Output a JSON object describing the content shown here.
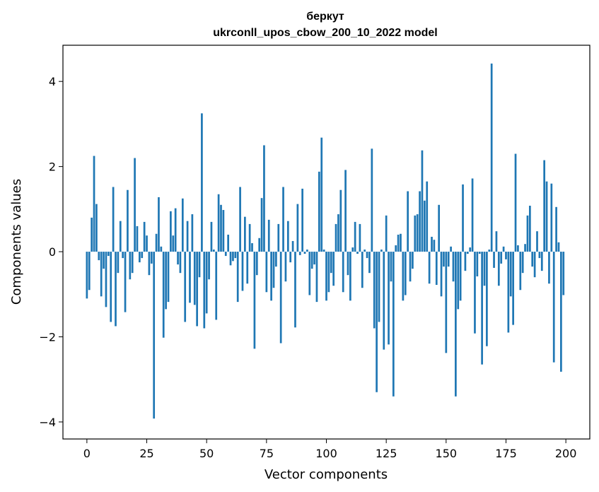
{
  "chart_data": {
    "type": "bar",
    "title": "беркут",
    "subtitle": "ukrconll_upos_cbow_200_10_2022 model",
    "xlabel": "Vector components",
    "ylabel": "Components values",
    "xlim": [
      -10,
      210
    ],
    "ylim": [
      -4.4,
      4.85
    ],
    "xticks": [
      0,
      25,
      50,
      75,
      100,
      125,
      150,
      175,
      200
    ],
    "yticks": [
      -4,
      -2,
      0,
      2,
      4
    ],
    "ytick_labels": [
      "−4",
      "−2",
      "0",
      "2",
      "4"
    ],
    "grid": false,
    "bar_color": "#1f77b4",
    "x": [
      0,
      1,
      2,
      3,
      4,
      5,
      6,
      7,
      8,
      9,
      10,
      11,
      12,
      13,
      14,
      15,
      16,
      17,
      18,
      19,
      20,
      21,
      22,
      23,
      24,
      25,
      26,
      27,
      28,
      29,
      30,
      31,
      32,
      33,
      34,
      35,
      36,
      37,
      38,
      39,
      40,
      41,
      42,
      43,
      44,
      45,
      46,
      47,
      48,
      49,
      50,
      51,
      52,
      53,
      54,
      55,
      56,
      57,
      58,
      59,
      60,
      61,
      62,
      63,
      64,
      65,
      66,
      67,
      68,
      69,
      70,
      71,
      72,
      73,
      74,
      75,
      76,
      77,
      78,
      79,
      80,
      81,
      82,
      83,
      84,
      85,
      86,
      87,
      88,
      89,
      90,
      91,
      92,
      93,
      94,
      95,
      96,
      97,
      98,
      99,
      100,
      101,
      102,
      103,
      104,
      105,
      106,
      107,
      108,
      109,
      110,
      111,
      112,
      113,
      114,
      115,
      116,
      117,
      118,
      119,
      120,
      121,
      122,
      123,
      124,
      125,
      126,
      127,
      128,
      129,
      130,
      131,
      132,
      133,
      134,
      135,
      136,
      137,
      138,
      139,
      140,
      141,
      142,
      143,
      144,
      145,
      146,
      147,
      148,
      149,
      150,
      151,
      152,
      153,
      154,
      155,
      156,
      157,
      158,
      159,
      160,
      161,
      162,
      163,
      164,
      165,
      166,
      167,
      168,
      169,
      170,
      171,
      172,
      173,
      174,
      175,
      176,
      177,
      178,
      179,
      180,
      181,
      182,
      183,
      184,
      185,
      186,
      187,
      188,
      189,
      190,
      191,
      192,
      193,
      194,
      195,
      196,
      197,
      198,
      199
    ],
    "values": [
      -1.1,
      -0.9,
      0.8,
      2.25,
      1.12,
      -0.2,
      -1.05,
      -0.4,
      -1.3,
      -0.1,
      -1.65,
      1.52,
      -1.75,
      -0.5,
      0.72,
      -0.15,
      -1.42,
      1.45,
      -0.65,
      -0.5,
      2.2,
      0.6,
      -0.25,
      -0.15,
      0.7,
      0.38,
      -0.55,
      -0.28,
      -3.92,
      0.42,
      1.28,
      0.12,
      -2.02,
      -1.35,
      -1.18,
      0.95,
      0.38,
      1.02,
      -0.3,
      -0.5,
      1.25,
      -1.65,
      0.72,
      -1.2,
      0.88,
      -1.25,
      -1.75,
      -0.6,
      3.25,
      -1.8,
      -1.45,
      -0.65,
      0.7,
      0.05,
      -1.6,
      1.35,
      1.1,
      0.98,
      -0.1,
      0.4,
      -0.32,
      -0.22,
      -0.15,
      -1.18,
      1.52,
      -0.92,
      0.82,
      -0.75,
      0.65,
      0.2,
      -2.28,
      -0.55,
      0.32,
      1.26,
      2.5,
      -0.95,
      0.75,
      -1.15,
      -0.85,
      -0.35,
      0.65,
      -2.15,
      1.52,
      -0.7,
      0.72,
      -0.25,
      0.25,
      -1.78,
      1.12,
      -0.08,
      1.48,
      -0.05,
      0.05,
      -1.02,
      -0.4,
      -0.3,
      -1.18,
      1.88,
      2.68,
      0.05,
      -1.15,
      -0.95,
      -0.5,
      -0.8,
      0.65,
      0.88,
      1.45,
      -0.95,
      1.92,
      -0.55,
      -1.15,
      0.1,
      0.7,
      -0.05,
      0.65,
      -0.85,
      0.05,
      -0.15,
      -0.5,
      2.42,
      -1.8,
      -3.3,
      -1.65,
      0.05,
      -2.3,
      0.85,
      -2.18,
      -0.7,
      -3.4,
      0.15,
      0.4,
      0.42,
      -1.15,
      -1.02,
      1.42,
      -0.7,
      -0.4,
      0.85,
      0.88,
      1.42,
      2.38,
      1.2,
      1.65,
      -0.75,
      0.35,
      0.28,
      -0.78,
      1.1,
      -1.05,
      -0.35,
      -2.38,
      -0.35,
      0.12,
      -0.7,
      -3.4,
      -1.35,
      -1.15,
      1.58,
      -0.45,
      -0.05,
      0.1,
      1.72,
      -1.92,
      -0.58,
      -0.05,
      -2.65,
      -0.8,
      -2.22,
      0.05,
      4.42,
      -0.38,
      0.48,
      -0.8,
      -0.28,
      0.12,
      -0.18,
      -1.9,
      -1.05,
      -1.72,
      2.3,
      0.15,
      -0.9,
      -0.5,
      0.18,
      0.85,
      1.08,
      -0.35,
      -0.6,
      0.48,
      -0.15,
      -0.45,
      2.15,
      1.65,
      -0.75,
      1.6,
      -2.6,
      1.05,
      0.22,
      -2.82,
      -1.02
    ]
  }
}
